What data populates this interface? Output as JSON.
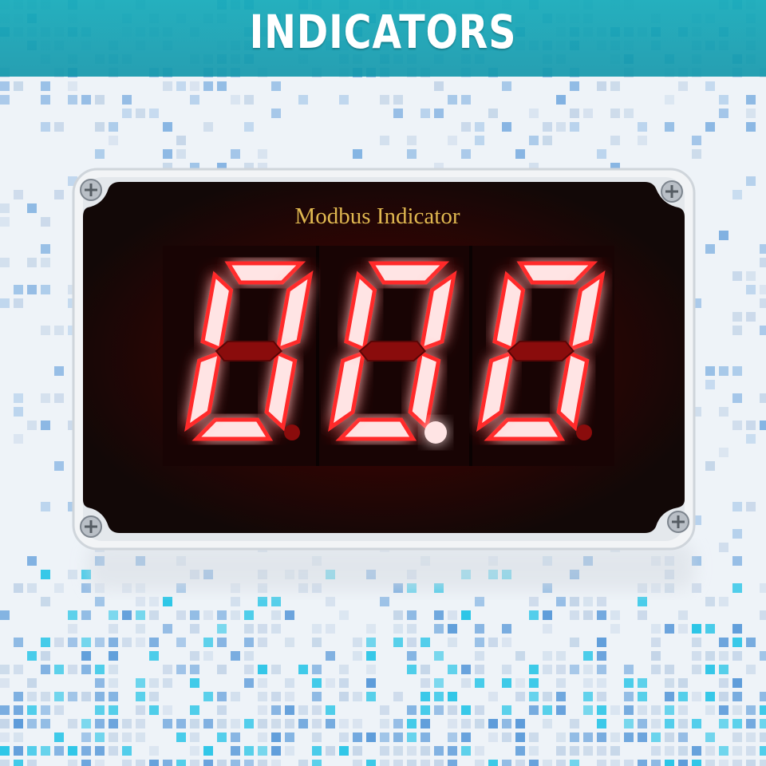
{
  "banner": {
    "title": "INDICATORS"
  },
  "device": {
    "label": "Modbus Indicator",
    "digits": [
      "0",
      "0",
      "0"
    ],
    "decimal_point_lit": [
      false,
      true,
      false
    ]
  },
  "colors": {
    "banner": "#15a9b9",
    "housing": "#f2f4f6",
    "panel": "#120807",
    "segment_on": "#ffe4e4",
    "segment_glow": "#ff2a2a",
    "segment_off": "#8a0c0c",
    "label": "#e0b850",
    "mosaic_blue": "#2d7fd0",
    "mosaic_cyan": "#22c3e6"
  }
}
